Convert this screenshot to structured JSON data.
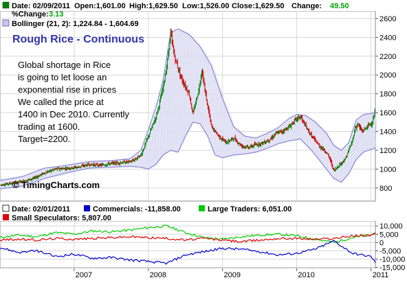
{
  "chart_data": [
    {
      "type": "candlestick",
      "title": "Rough Rice - Continuous",
      "quote": {
        "date_label": "Date: 02/09/2011",
        "open_label": "Open:1,601.00",
        "high_label": "High:1,629.50",
        "low_label": "Low:1,526.00",
        "close_label": "Close:1,629.50",
        "change_label": "Change:",
        "change_value": "49.50",
        "pct_change_label": "%Change:",
        "pct_change_value": "3.13"
      },
      "bollinger_label": "Bollinger (21, 2): 1,224.84 - 1,604.69",
      "annotation_lines": [
        "Global shortage in Rice",
        "is going to let loose an",
        "exponential rise in prices",
        "We called the price at",
        "1400 in Dec 2010. Currently",
        "trading at 1600.",
        "Target=2200."
      ],
      "watermark": "© TimingCharts.com",
      "y_ticks": [
        "800",
        "1000",
        "1200",
        "1400",
        "1600",
        "1800",
        "2000",
        "2200",
        "2400",
        "2600"
      ],
      "ylim": [
        660,
        2680
      ],
      "xlim": [
        2006.0,
        2011.06
      ],
      "x_ticks": [
        "2007",
        "2008",
        "2009",
        "2010",
        "2011"
      ],
      "grid": true,
      "colors": {
        "up": "#008000",
        "down": "#cc0000",
        "band_stroke": "#8c8cd9",
        "band_fill": "#e6e6f7",
        "title": "#3333aa",
        "change": "#00a000"
      },
      "price_path": [
        {
          "x": 2006.0,
          "y": 830
        },
        {
          "x": 2006.15,
          "y": 850
        },
        {
          "x": 2006.3,
          "y": 870
        },
        {
          "x": 2006.45,
          "y": 900
        },
        {
          "x": 2006.6,
          "y": 960
        },
        {
          "x": 2006.75,
          "y": 1000
        },
        {
          "x": 2006.9,
          "y": 1010
        },
        {
          "x": 2007.05,
          "y": 1020
        },
        {
          "x": 2007.2,
          "y": 1050
        },
        {
          "x": 2007.35,
          "y": 1040
        },
        {
          "x": 2007.5,
          "y": 1060
        },
        {
          "x": 2007.65,
          "y": 1070
        },
        {
          "x": 2007.75,
          "y": 1080
        },
        {
          "x": 2007.8,
          "y": 1090
        },
        {
          "x": 2007.9,
          "y": 1150
        },
        {
          "x": 2008.0,
          "y": 1350
        },
        {
          "x": 2008.1,
          "y": 1550
        },
        {
          "x": 2008.18,
          "y": 1800
        },
        {
          "x": 2008.25,
          "y": 2100
        },
        {
          "x": 2008.3,
          "y": 2450
        },
        {
          "x": 2008.35,
          "y": 2200
        },
        {
          "x": 2008.45,
          "y": 1950
        },
        {
          "x": 2008.55,
          "y": 1800
        },
        {
          "x": 2008.6,
          "y": 1580
        },
        {
          "x": 2008.68,
          "y": 1850
        },
        {
          "x": 2008.72,
          "y": 2050
        },
        {
          "x": 2008.78,
          "y": 1750
        },
        {
          "x": 2008.85,
          "y": 1450
        },
        {
          "x": 2008.95,
          "y": 1350
        },
        {
          "x": 2009.05,
          "y": 1280
        },
        {
          "x": 2009.15,
          "y": 1330
        },
        {
          "x": 2009.25,
          "y": 1250
        },
        {
          "x": 2009.35,
          "y": 1230
        },
        {
          "x": 2009.45,
          "y": 1260
        },
        {
          "x": 2009.55,
          "y": 1280
        },
        {
          "x": 2009.65,
          "y": 1320
        },
        {
          "x": 2009.72,
          "y": 1380
        },
        {
          "x": 2009.8,
          "y": 1400
        },
        {
          "x": 2009.9,
          "y": 1450
        },
        {
          "x": 2009.98,
          "y": 1520
        },
        {
          "x": 2010.05,
          "y": 1560
        },
        {
          "x": 2010.1,
          "y": 1480
        },
        {
          "x": 2010.2,
          "y": 1350
        },
        {
          "x": 2010.3,
          "y": 1250
        },
        {
          "x": 2010.4,
          "y": 1180
        },
        {
          "x": 2010.45,
          "y": 1100
        },
        {
          "x": 2010.5,
          "y": 980
        },
        {
          "x": 2010.58,
          "y": 1050
        },
        {
          "x": 2010.65,
          "y": 1100
        },
        {
          "x": 2010.7,
          "y": 1200
        },
        {
          "x": 2010.75,
          "y": 1300
        },
        {
          "x": 2010.78,
          "y": 1420
        },
        {
          "x": 2010.82,
          "y": 1480
        },
        {
          "x": 2010.88,
          "y": 1400
        },
        {
          "x": 2010.95,
          "y": 1450
        },
        {
          "x": 2011.02,
          "y": 1500
        },
        {
          "x": 2011.06,
          "y": 1629.5
        }
      ],
      "upper_band": [
        {
          "x": 2006.0,
          "y": 880
        },
        {
          "x": 2006.3,
          "y": 920
        },
        {
          "x": 2006.6,
          "y": 1010
        },
        {
          "x": 2006.9,
          "y": 1040
        },
        {
          "x": 2007.2,
          "y": 1080
        },
        {
          "x": 2007.5,
          "y": 1090
        },
        {
          "x": 2007.75,
          "y": 1110
        },
        {
          "x": 2007.9,
          "y": 1200
        },
        {
          "x": 2008.0,
          "y": 1420
        },
        {
          "x": 2008.1,
          "y": 1650
        },
        {
          "x": 2008.2,
          "y": 1950
        },
        {
          "x": 2008.3,
          "y": 2450
        },
        {
          "x": 2008.4,
          "y": 2490
        },
        {
          "x": 2008.55,
          "y": 2430
        },
        {
          "x": 2008.7,
          "y": 2300
        },
        {
          "x": 2008.85,
          "y": 2100
        },
        {
          "x": 2009.0,
          "y": 1750
        },
        {
          "x": 2009.15,
          "y": 1450
        },
        {
          "x": 2009.3,
          "y": 1350
        },
        {
          "x": 2009.45,
          "y": 1330
        },
        {
          "x": 2009.6,
          "y": 1380
        },
        {
          "x": 2009.75,
          "y": 1440
        },
        {
          "x": 2009.9,
          "y": 1540
        },
        {
          "x": 2010.0,
          "y": 1580
        },
        {
          "x": 2010.12,
          "y": 1570
        },
        {
          "x": 2010.25,
          "y": 1500
        },
        {
          "x": 2010.4,
          "y": 1380
        },
        {
          "x": 2010.5,
          "y": 1250
        },
        {
          "x": 2010.6,
          "y": 1200
        },
        {
          "x": 2010.7,
          "y": 1280
        },
        {
          "x": 2010.8,
          "y": 1520
        },
        {
          "x": 2010.9,
          "y": 1580
        },
        {
          "x": 2011.0,
          "y": 1590
        },
        {
          "x": 2011.06,
          "y": 1604.69
        }
      ],
      "lower_band": [
        {
          "x": 2006.0,
          "y": 790
        },
        {
          "x": 2006.3,
          "y": 820
        },
        {
          "x": 2006.6,
          "y": 900
        },
        {
          "x": 2006.9,
          "y": 960
        },
        {
          "x": 2007.2,
          "y": 1010
        },
        {
          "x": 2007.5,
          "y": 1020
        },
        {
          "x": 2007.75,
          "y": 1030
        },
        {
          "x": 2007.9,
          "y": 1020
        },
        {
          "x": 2008.0,
          "y": 1000
        },
        {
          "x": 2008.1,
          "y": 1050
        },
        {
          "x": 2008.2,
          "y": 1150
        },
        {
          "x": 2008.3,
          "y": 1200
        },
        {
          "x": 2008.4,
          "y": 1180
        },
        {
          "x": 2008.5,
          "y": 1350
        },
        {
          "x": 2008.6,
          "y": 1500
        },
        {
          "x": 2008.7,
          "y": 1480
        },
        {
          "x": 2008.8,
          "y": 1350
        },
        {
          "x": 2008.9,
          "y": 1150
        },
        {
          "x": 2009.0,
          "y": 1120
        },
        {
          "x": 2009.15,
          "y": 1150
        },
        {
          "x": 2009.3,
          "y": 1160
        },
        {
          "x": 2009.45,
          "y": 1180
        },
        {
          "x": 2009.6,
          "y": 1220
        },
        {
          "x": 2009.75,
          "y": 1270
        },
        {
          "x": 2009.9,
          "y": 1300
        },
        {
          "x": 2010.05,
          "y": 1320
        },
        {
          "x": 2010.2,
          "y": 1200
        },
        {
          "x": 2010.3,
          "y": 1100
        },
        {
          "x": 2010.4,
          "y": 1000
        },
        {
          "x": 2010.5,
          "y": 900
        },
        {
          "x": 2010.6,
          "y": 860
        },
        {
          "x": 2010.7,
          "y": 950
        },
        {
          "x": 2010.8,
          "y": 1100
        },
        {
          "x": 2010.9,
          "y": 1180
        },
        {
          "x": 2011.0,
          "y": 1210
        },
        {
          "x": 2011.06,
          "y": 1224.84
        }
      ]
    },
    {
      "type": "line",
      "legend": {
        "date_label": "Date: 02/01/2011",
        "commercials_label": "Commercials: -11,858.00",
        "large_traders_label": "Large Traders: 6,051.00",
        "small_specs_label": "Small Speculators: 5,807.00"
      },
      "y_ticks": [
        "-15,000",
        "-10,000",
        "-5,000",
        "0",
        "5,000",
        "10,000"
      ],
      "ylim": [
        -15600,
        13000
      ],
      "xlim": [
        2006.0,
        2011.06
      ],
      "x_ticks": [
        "2007",
        "2008",
        "2009",
        "2010",
        "2011"
      ],
      "grid": true,
      "series": [
        {
          "name": "Large Traders",
          "color": "#00cc00",
          "points": [
            {
              "x": 2006.0,
              "y": 3000
            },
            {
              "x": 2006.25,
              "y": 4500
            },
            {
              "x": 2006.5,
              "y": 3500
            },
            {
              "x": 2006.75,
              "y": 6000
            },
            {
              "x": 2007.0,
              "y": 5000
            },
            {
              "x": 2007.25,
              "y": 7000
            },
            {
              "x": 2007.5,
              "y": 6500
            },
            {
              "x": 2007.75,
              "y": 7500
            },
            {
              "x": 2008.0,
              "y": 9000
            },
            {
              "x": 2008.25,
              "y": 10000
            },
            {
              "x": 2008.5,
              "y": 6000
            },
            {
              "x": 2008.75,
              "y": 3000
            },
            {
              "x": 2009.0,
              "y": 2000
            },
            {
              "x": 2009.25,
              "y": 3500
            },
            {
              "x": 2009.5,
              "y": 4500
            },
            {
              "x": 2009.75,
              "y": 5000
            },
            {
              "x": 2010.0,
              "y": 4000
            },
            {
              "x": 2010.25,
              "y": 2000
            },
            {
              "x": 2010.5,
              "y": 0
            },
            {
              "x": 2010.75,
              "y": 3000
            },
            {
              "x": 2011.0,
              "y": 4500
            },
            {
              "x": 2011.06,
              "y": 6051
            }
          ]
        },
        {
          "name": "Small Speculators",
          "color": "#dd0000",
          "points": [
            {
              "x": 2006.0,
              "y": 1500
            },
            {
              "x": 2006.25,
              "y": 2000
            },
            {
              "x": 2006.5,
              "y": 1500
            },
            {
              "x": 2006.75,
              "y": 2500
            },
            {
              "x": 2007.0,
              "y": 2000
            },
            {
              "x": 2007.25,
              "y": 2500
            },
            {
              "x": 2007.5,
              "y": 3000
            },
            {
              "x": 2007.75,
              "y": 3500
            },
            {
              "x": 2008.0,
              "y": 3000
            },
            {
              "x": 2008.25,
              "y": 2500
            },
            {
              "x": 2008.5,
              "y": 1500
            },
            {
              "x": 2008.75,
              "y": 2500
            },
            {
              "x": 2009.0,
              "y": 1500
            },
            {
              "x": 2009.25,
              "y": 500
            },
            {
              "x": 2009.5,
              "y": 1500
            },
            {
              "x": 2009.75,
              "y": 2500
            },
            {
              "x": 2010.0,
              "y": 2500
            },
            {
              "x": 2010.25,
              "y": 2000
            },
            {
              "x": 2010.5,
              "y": 2500
            },
            {
              "x": 2010.75,
              "y": 4000
            },
            {
              "x": 2011.0,
              "y": 4500
            },
            {
              "x": 2011.06,
              "y": 5807
            }
          ]
        },
        {
          "name": "Commercials",
          "color": "#0000cc",
          "points": [
            {
              "x": 2006.0,
              "y": -3000
            },
            {
              "x": 2006.25,
              "y": -6000
            },
            {
              "x": 2006.5,
              "y": -5000
            },
            {
              "x": 2006.75,
              "y": -8500
            },
            {
              "x": 2007.0,
              "y": -7000
            },
            {
              "x": 2007.25,
              "y": -9500
            },
            {
              "x": 2007.5,
              "y": -9000
            },
            {
              "x": 2007.75,
              "y": -10500
            },
            {
              "x": 2008.0,
              "y": -11500
            },
            {
              "x": 2008.25,
              "y": -12500
            },
            {
              "x": 2008.5,
              "y": -7500
            },
            {
              "x": 2008.75,
              "y": -5500
            },
            {
              "x": 2009.0,
              "y": -3500
            },
            {
              "x": 2009.25,
              "y": -4000
            },
            {
              "x": 2009.5,
              "y": -5500
            },
            {
              "x": 2009.75,
              "y": -7500
            },
            {
              "x": 2010.0,
              "y": -6500
            },
            {
              "x": 2010.25,
              "y": -4000
            },
            {
              "x": 2010.5,
              "y": 1000
            },
            {
              "x": 2010.75,
              "y": -6500
            },
            {
              "x": 2011.0,
              "y": -8500
            },
            {
              "x": 2011.06,
              "y": -11858
            }
          ]
        }
      ]
    }
  ]
}
